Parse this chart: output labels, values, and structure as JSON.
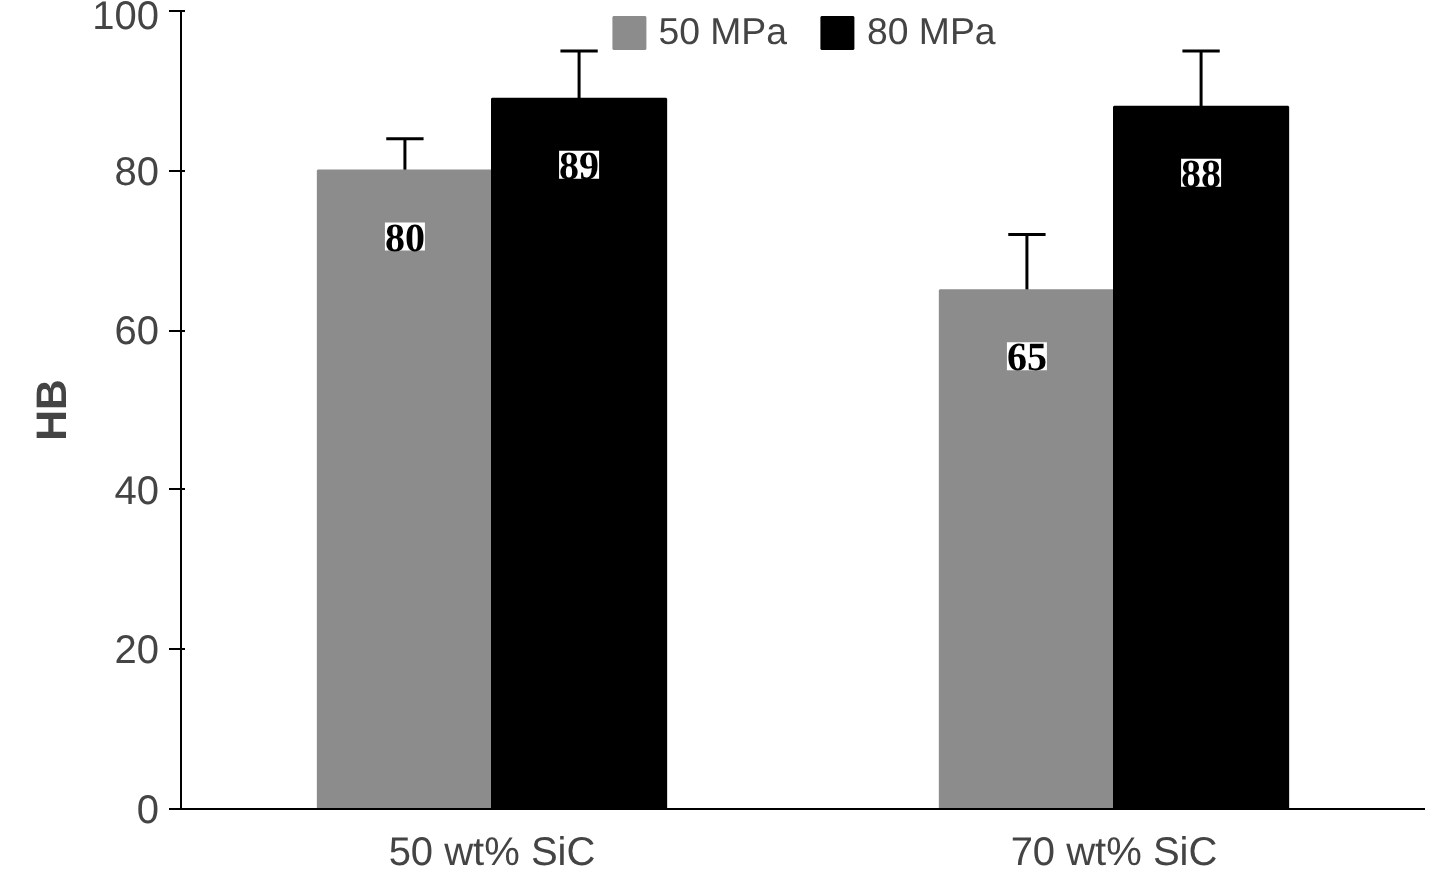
{
  "chart_data": {
    "type": "bar",
    "ylabel": "HB",
    "categories": [
      "50 wt% SiC",
      "70 wt% SiC"
    ],
    "series": [
      {
        "name": "50 MPa",
        "color": "#8c8c8c",
        "values": [
          80,
          65
        ],
        "errors": [
          4,
          7
        ]
      },
      {
        "name": "80 MPa",
        "color": "#000000",
        "values": [
          89,
          88
        ],
        "errors": [
          6,
          7
        ]
      }
    ],
    "ylim": [
      0,
      100
    ],
    "yticks": [
      0,
      20,
      40,
      60,
      80,
      100
    ],
    "data_labels": true,
    "legend": "top",
    "grid": false
  }
}
